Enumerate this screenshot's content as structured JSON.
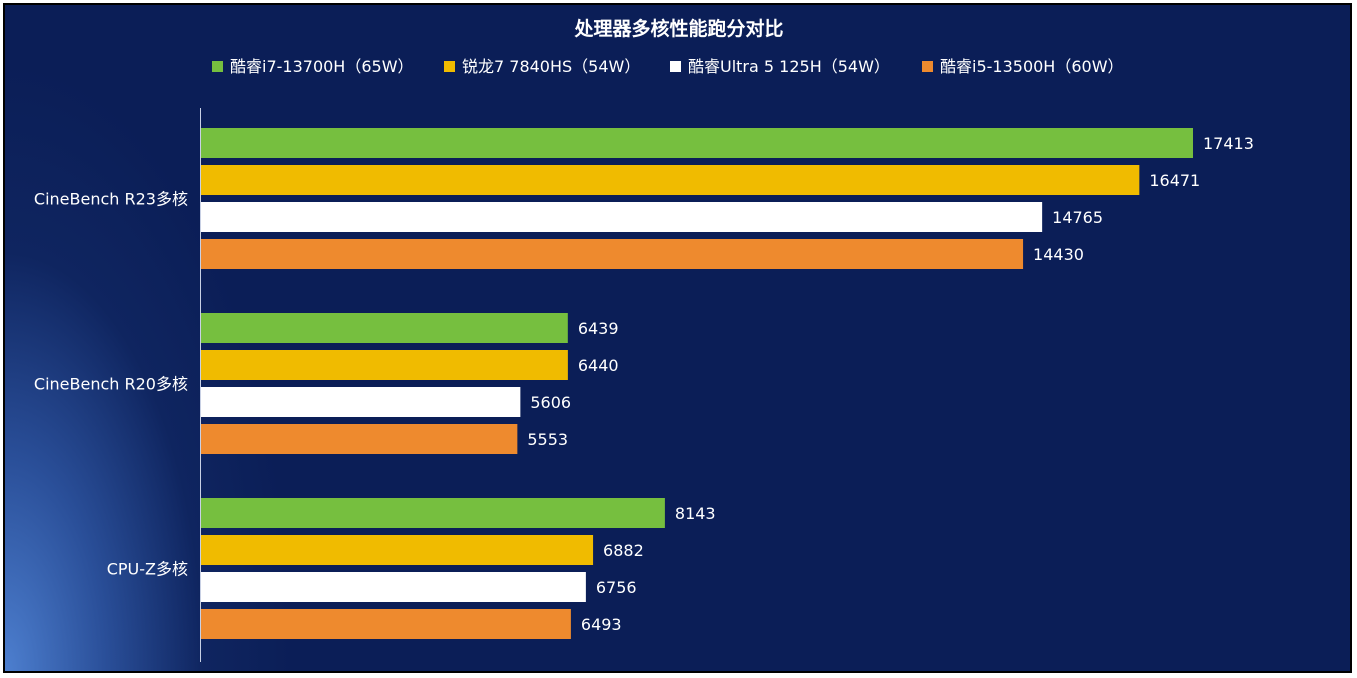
{
  "chart_data": {
    "type": "bar",
    "orientation": "horizontal",
    "title": "处理器多核性能跑分对比",
    "categories": [
      "CineBench R23多核",
      "CineBench R20多核",
      "CPU-Z多核"
    ],
    "series": [
      {
        "name": "酷睿i7-13700H（65W）",
        "color": "#76bf3f",
        "values": [
          17413,
          6439,
          8143
        ]
      },
      {
        "name": "锐龙7 7840HS（54W）",
        "color": "#f0bb00",
        "values": [
          16471,
          6440,
          6882
        ]
      },
      {
        "name": "酷睿Ultra 5 125H（54W）",
        "color": "#ffffff",
        "values": [
          14765,
          5606,
          6756
        ]
      },
      {
        "name": "酷睿i5-13500H（60W）",
        "color": "#ee8a2e",
        "values": [
          14430,
          5553,
          6493
        ]
      }
    ],
    "xlim": [
      0,
      17413
    ],
    "legend_position": "top",
    "grid": false,
    "data_labels": true
  }
}
